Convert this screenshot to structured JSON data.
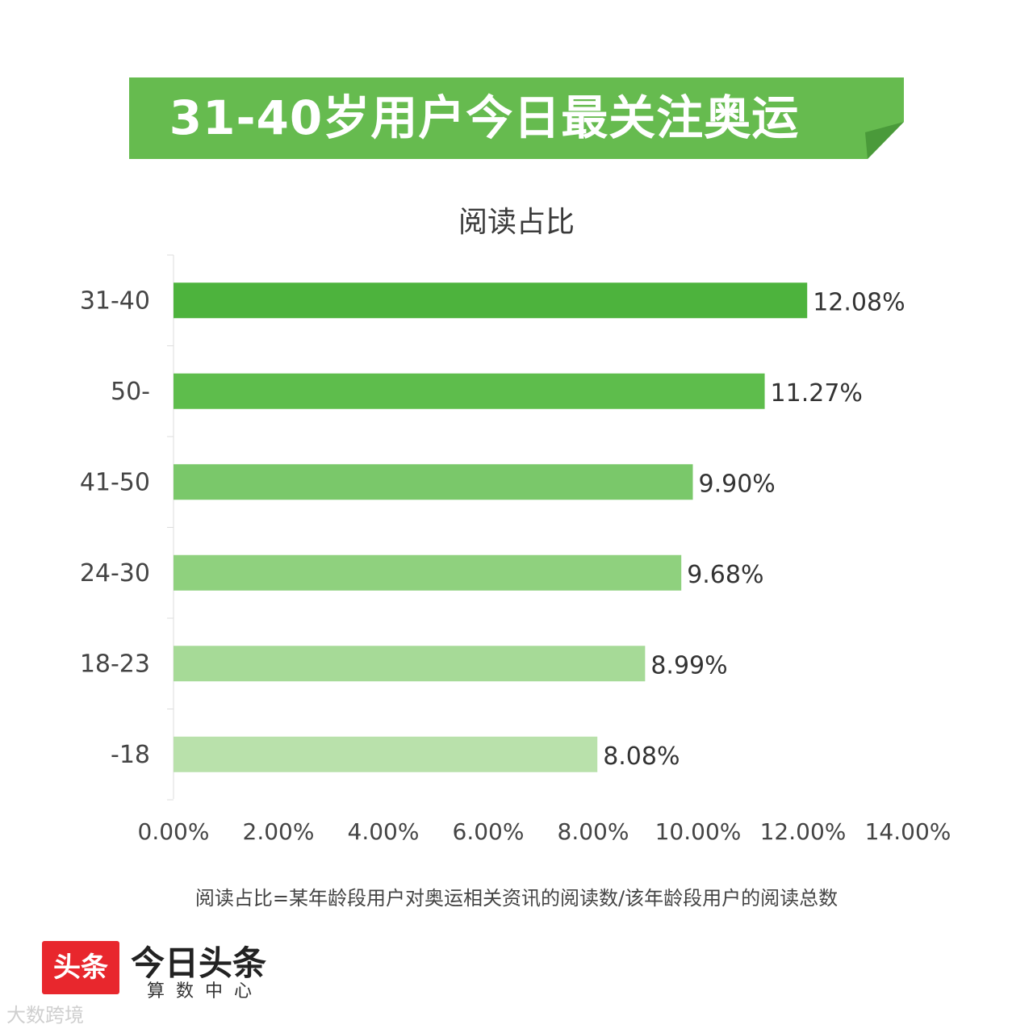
{
  "banner": {
    "title": "31-40岁用户今日最关注奥运",
    "color": "#66bb4f",
    "fold_color": "#4a9a3a"
  },
  "chart_data": {
    "type": "bar",
    "orientation": "horizontal",
    "title": "阅读占比",
    "categories": [
      "31-40",
      "50-",
      "41-50",
      "24-30",
      "18-23",
      "-18"
    ],
    "values": [
      12.08,
      11.27,
      9.9,
      9.68,
      8.99,
      8.08
    ],
    "value_labels": [
      "12.08%",
      "11.27%",
      "9.90%",
      "9.68%",
      "8.99%",
      "8.08%"
    ],
    "bar_colors": [
      "#4db33d",
      "#5ebd4c",
      "#7ac86a",
      "#8fd17e",
      "#a6da97",
      "#b9e1ab"
    ],
    "xlim": [
      0,
      14
    ],
    "x_ticks": [
      "0.00%",
      "2.00%",
      "4.00%",
      "6.00%",
      "8.00%",
      "10.00%",
      "12.00%",
      "14.00%"
    ],
    "grid": false,
    "xlabel": "",
    "ylabel": ""
  },
  "footnote": "阅读占比=某年龄段用户对奥运相关资讯的阅读数/该年龄段用户的阅读总数",
  "logo": {
    "box_text": "头条",
    "name": "今日头条",
    "subtitle": "算数中心",
    "box_color": "#e8272d"
  },
  "watermark": "大数跨境"
}
